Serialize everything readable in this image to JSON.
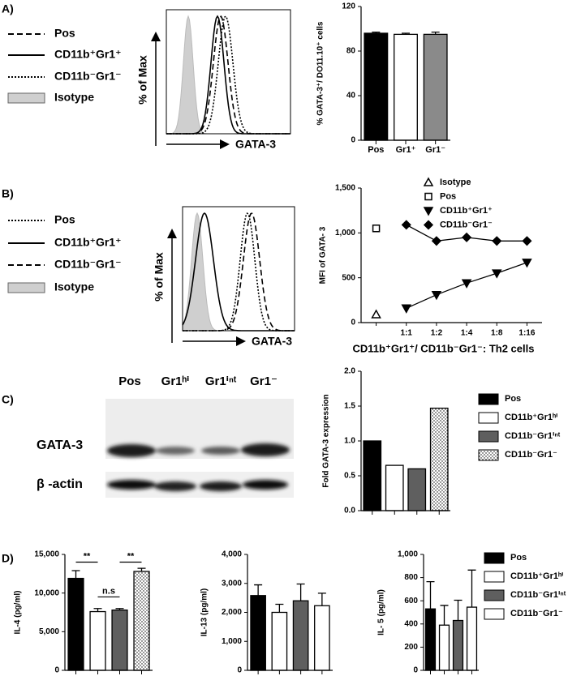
{
  "panel_labels": [
    "A)",
    "B)",
    "C)",
    "D)"
  ],
  "histograms": [
    {
      "legend": [
        {
          "name": "Pos",
          "style": "dashed"
        },
        {
          "name": "CD11b⁺Gr1⁺",
          "style": "solid"
        },
        {
          "name": "CD11b⁻Gr1⁻",
          "style": "dotted"
        },
        {
          "name": "Isotype",
          "style": "filled"
        }
      ],
      "ylabel": "% of Max",
      "xlabel": "GATA-3"
    },
    {
      "legend": [
        {
          "name": "Pos",
          "style": "dotted"
        },
        {
          "name": "CD11b⁺Gr1⁺",
          "style": "solid"
        },
        {
          "name": "CD11b⁻Gr1⁻",
          "style": "dashed"
        },
        {
          "name": "Isotype",
          "style": "filled"
        }
      ],
      "ylabel": "% of Max",
      "xlabel": "GATA-3"
    }
  ],
  "blot": {
    "lanes": [
      "Pos",
      "Gr1ʰⁱ",
      "Gr1ⁱⁿᵗ",
      "Gr1⁻"
    ],
    "rows": [
      "GATA-3",
      "β -actin"
    ]
  },
  "chart_data": [
    {
      "type": "bar",
      "ylabel": "% GATA-3⁺/ DO11.10⁺ cells",
      "categories": [
        "Pos",
        "Gr1⁺",
        "Gr1⁻"
      ],
      "values": [
        96,
        95,
        95
      ],
      "errors": [
        1,
        1,
        2
      ],
      "colors": [
        "#000000",
        "#ffffff",
        "#8a8a8a"
      ],
      "dotted": [
        false,
        false,
        false
      ],
      "ylim": [
        0,
        120
      ],
      "yticks": [
        0,
        40,
        80,
        120
      ]
    },
    {
      "type": "line",
      "ylabel": "MFI of GATA- 3",
      "xlabel": "CD11b⁺Gr1⁺/ CD11b⁻Gr1⁻: Th2 cells",
      "categories": [
        null,
        "1:1",
        "1:2",
        "1:4",
        "1:8",
        "1:16"
      ],
      "series": [
        {
          "name": "Isotype",
          "marker": "triangle-open",
          "color": "#000000",
          "values": [
            90,
            null,
            null,
            null,
            null,
            null
          ]
        },
        {
          "name": "Pos",
          "marker": "square-open",
          "color": "#000000",
          "values": [
            1050,
            null,
            null,
            null,
            null,
            null
          ]
        },
        {
          "name": "CD11b⁺Gr1⁺",
          "marker": "triangle-down",
          "color": "#000000",
          "values": [
            null,
            160,
            310,
            440,
            550,
            670
          ]
        },
        {
          "name": "CD11b⁻Gr1⁻",
          "marker": "diamond",
          "color": "#000000",
          "values": [
            null,
            1090,
            910,
            950,
            910,
            910
          ]
        }
      ],
      "ylim": [
        0,
        1500
      ],
      "yticks": [
        0,
        500,
        {
          "value": 1000,
          "label": "1,000"
        },
        {
          "value": 1500,
          "label": "1,500"
        }
      ],
      "legend": "upper right"
    },
    {
      "type": "bar",
      "ylabel": "Fold GATA-3 expression",
      "categories": [
        "Pos",
        "CD11b⁺Gr1ʰⁱ",
        "CD11b⁻Gr1ⁱⁿᵗ",
        "CD11b⁻Gr1⁻"
      ],
      "values": [
        1.0,
        0.65,
        0.6,
        1.47
      ],
      "colors": [
        "#000000",
        "#ffffff",
        "#5f5f5f",
        "#ffffff"
      ],
      "dotted": [
        false,
        false,
        false,
        true
      ],
      "ylim": [
        0,
        2
      ],
      "yticks": [
        {
          "value": 0,
          "label": "0.0"
        },
        0.5,
        {
          "value": 1,
          "label": "1.0"
        },
        1.5,
        {
          "value": 2,
          "label": "2.0"
        }
      ],
      "legend": "right"
    },
    {
      "type": "bar",
      "ylabel": "IL-4 (pg/ml)",
      "categories": [
        null,
        null,
        null,
        null
      ],
      "values": [
        11900,
        7600,
        7800,
        12800
      ],
      "errors": [
        1000,
        400,
        200,
        400
      ],
      "colors": [
        "#000000",
        "#ffffff",
        "#5f5f5f",
        "#ffffff"
      ],
      "dotted": [
        false,
        false,
        false,
        true
      ],
      "ylim": [
        0,
        15000
      ],
      "yticks": [
        0,
        {
          "value": 5000,
          "label": "5,000"
        },
        {
          "value": 10000,
          "label": "10,000"
        },
        {
          "value": 15000,
          "label": "15,000"
        }
      ],
      "annotations": [
        {
          "text": "**",
          "between": [
            0,
            1
          ],
          "y": 14000
        },
        {
          "text": "n.s",
          "between": [
            1,
            2
          ],
          "y": 9500
        },
        {
          "text": "**",
          "between": [
            2,
            3
          ],
          "y": 14000
        }
      ]
    },
    {
      "type": "bar",
      "ylabel": "IL-13 (pg/ml)",
      "categories": [
        null,
        null,
        null,
        null
      ],
      "values": [
        2580,
        2000,
        2400,
        2230
      ],
      "errors": [
        370,
        280,
        580,
        430
      ],
      "colors": [
        "#000000",
        "#ffffff",
        "#5f5f5f",
        "#ffffff"
      ],
      "dotted": [
        false,
        false,
        false,
        false
      ],
      "ylim": [
        0,
        4000
      ],
      "yticks": [
        0,
        {
          "value": 1000,
          "label": "1,000"
        },
        {
          "value": 2000,
          "label": "2,000"
        },
        {
          "value": 3000,
          "label": "3,000"
        },
        {
          "value": 4000,
          "label": "4,000"
        }
      ]
    },
    {
      "type": "bar",
      "ylabel": "IL- 5 (pg/ml)",
      "categories": [
        "Pos",
        "CD11b⁺Gr1ʰⁱ",
        "CD11b⁻Gr1ⁱⁿᵗ",
        "CD11b⁻Gr1⁻"
      ],
      "values": [
        530,
        390,
        430,
        545
      ],
      "errors": [
        235,
        170,
        175,
        320
      ],
      "colors": [
        "#000000",
        "#ffffff",
        "#5f5f5f",
        "#ffffff"
      ],
      "dotted": [
        false,
        false,
        false,
        false
      ],
      "ylim": [
        0,
        1000
      ],
      "yticks": [
        0,
        200,
        400,
        600,
        800,
        {
          "value": 1000,
          "label": "1,000"
        }
      ],
      "legend": "right"
    }
  ]
}
